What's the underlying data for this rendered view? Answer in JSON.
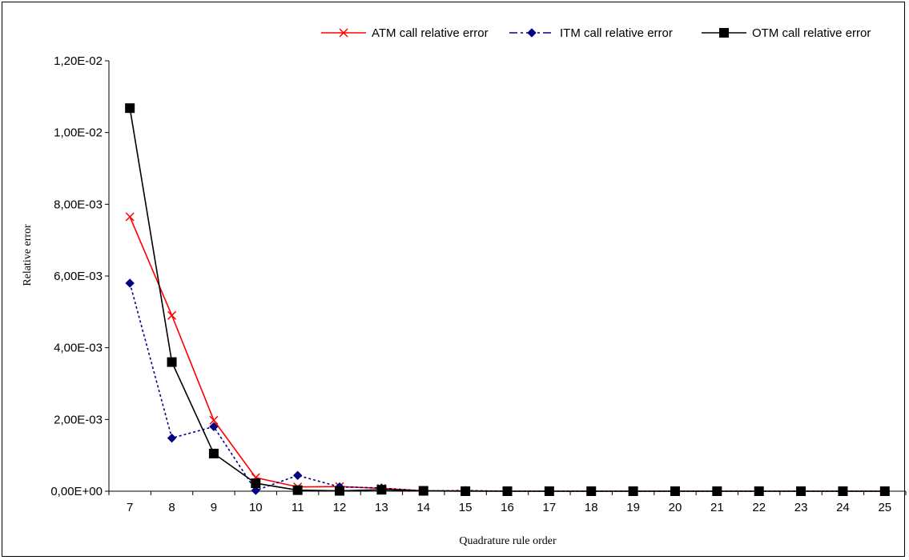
{
  "chart_data": {
    "type": "line",
    "xlabel": "Quadrature rule order",
    "ylabel": "Relative error",
    "categories": [
      "7",
      "8",
      "9",
      "10",
      "11",
      "12",
      "13",
      "14",
      "15",
      "16",
      "17",
      "18",
      "19",
      "20",
      "21",
      "22",
      "23",
      "24",
      "25"
    ],
    "ylim": [
      0,
      0.012
    ],
    "yticks": [
      {
        "value": 0,
        "label": "0,00E+00"
      },
      {
        "value": 0.002,
        "label": "2,00E-03"
      },
      {
        "value": 0.004,
        "label": "4,00E-03"
      },
      {
        "value": 0.006,
        "label": "6,00E-03"
      },
      {
        "value": 0.008,
        "label": "8,00E-03"
      },
      {
        "value": 0.01,
        "label": "1,00E-02"
      },
      {
        "value": 0.012,
        "label": "1,20E-02"
      }
    ],
    "grid": false,
    "legend_position": "top-right",
    "series": [
      {
        "name": "ATM call relative error",
        "color": "#ff0000",
        "line_style": "solid",
        "marker": "x",
        "values": [
          0.00765,
          0.0049,
          0.00198,
          0.00038,
          0.00012,
          0.00013,
          8e-05,
          1e-05,
          1e-05,
          0,
          0,
          0,
          0,
          0,
          0,
          0,
          0,
          0,
          0
        ]
      },
      {
        "name": "ITM call relative error",
        "color": "#000080",
        "line_style": "dashdot",
        "marker": "diamond",
        "values": [
          0.0058,
          0.00148,
          0.0018,
          2e-05,
          0.00044,
          0.00012,
          9e-05,
          1e-05,
          2e-05,
          0,
          0,
          0,
          0,
          0,
          0,
          0,
          0,
          0,
          0
        ]
      },
      {
        "name": "OTM call relative error",
        "color": "#000000",
        "line_style": "solid",
        "marker": "square",
        "values": [
          0.01068,
          0.0036,
          0.00105,
          0.00022,
          3e-05,
          1e-05,
          4e-05,
          1e-05,
          0,
          0,
          0,
          0,
          0,
          0,
          0,
          0,
          0,
          0,
          0
        ]
      }
    ]
  }
}
